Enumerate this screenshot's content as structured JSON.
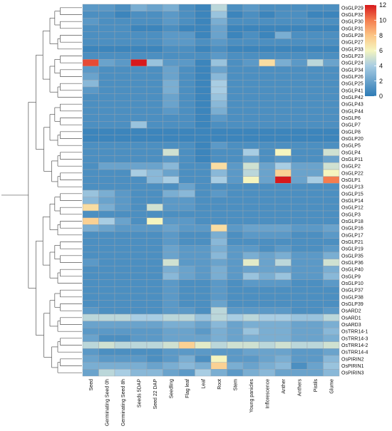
{
  "chart_data": {
    "type": "heatmap",
    "title": "",
    "columns": [
      "Seed",
      "Germinating Seed 0h",
      "Germinating Seed 8h",
      "Seeds 5DAP",
      "Seed 22 DAP",
      "Seedling",
      "Flag leaf",
      "Leaf",
      "Root",
      "Stem",
      "Young panicles",
      "Inflorescence",
      "Anther",
      "Anthers",
      "Pistils",
      "Glume"
    ],
    "rows": [
      "OsGLP29",
      "OsGLP32",
      "OsGLP30",
      "OsGLP31",
      "OsGLP28",
      "OsGLP27",
      "OsGLP33",
      "OsGLP23",
      "OsGLP24",
      "OsGLP34",
      "OsGLP26",
      "OsGLP25",
      "OsGLP41",
      "OsGLP42",
      "OsGLP43",
      "OsGLP44",
      "OsGLP6",
      "OsGLP7",
      "OsGLP8",
      "OsGLP20",
      "OsGLP5",
      "OsGLP4",
      "OsGLP11",
      "OsGLP2",
      "OsGLP22",
      "OsGLP1",
      "OsGLP13",
      "OsGLP15",
      "OsGLP14",
      "OsGLP12",
      "OsGLP3",
      "OsGLP18",
      "OsGLP16",
      "OsGLP17",
      "OsGLP21",
      "OsGLP19",
      "OsGLP35",
      "OsGLP36",
      "OsGLP40",
      "OsGLP9",
      "OsGLP10",
      "OsGLP37",
      "OsGLP38",
      "OsGLP39",
      "OsARD2",
      "OsARD1",
      "OsARD3",
      "OsTRR14-1",
      "OsTRR14-3",
      "OsTRR14-2",
      "OsTRR14-4",
      "OsPIRIN2",
      "OsPIRIN1",
      "OsPIRIN3"
    ],
    "values": [
      [
        1.5,
        1.5,
        1.0,
        2.5,
        2.0,
        2.5,
        1.0,
        0.5,
        4.5,
        1.0,
        1.5,
        1.0,
        1.0,
        1.0,
        1.0,
        1.0
      ],
      [
        1.0,
        1.0,
        0.5,
        1.0,
        1.0,
        1.5,
        1.0,
        0.5,
        3.5,
        0.5,
        1.0,
        0.5,
        1.0,
        1.0,
        0.5,
        0.5
      ],
      [
        1.5,
        1.0,
        1.0,
        1.0,
        1.0,
        1.5,
        1.0,
        0.5,
        2.5,
        1.0,
        1.0,
        1.0,
        1.0,
        1.0,
        1.0,
        1.0
      ],
      [
        1.0,
        1.0,
        1.0,
        0.5,
        0.5,
        1.0,
        0.5,
        0.5,
        2.0,
        0.5,
        0.5,
        0.5,
        0.5,
        0.5,
        0.5,
        0.5
      ],
      [
        1.0,
        1.0,
        1.0,
        1.0,
        1.0,
        1.5,
        1.5,
        0.5,
        2.0,
        0.5,
        1.0,
        0.5,
        2.5,
        1.0,
        1.0,
        1.0
      ],
      [
        1.0,
        1.0,
        1.0,
        1.0,
        1.0,
        1.5,
        1.5,
        1.0,
        1.5,
        1.0,
        1.0,
        1.0,
        1.0,
        1.0,
        1.0,
        1.0
      ],
      [
        0.5,
        0.5,
        0.5,
        0.5,
        0.5,
        1.0,
        1.0,
        0.5,
        1.0,
        0.5,
        0.5,
        0.5,
        0.5,
        0.5,
        0.5,
        0.5
      ],
      [
        1.0,
        1.0,
        1.0,
        1.0,
        1.0,
        1.0,
        1.0,
        1.0,
        1.5,
        1.0,
        1.0,
        1.0,
        1.0,
        1.0,
        1.0,
        1.0
      ],
      [
        11.0,
        2.0,
        1.5,
        12.0,
        3.5,
        1.5,
        1.5,
        0.5,
        3.5,
        1.0,
        1.5,
        7.0,
        2.5,
        1.5,
        4.5,
        2.0
      ],
      [
        1.5,
        1.0,
        1.0,
        1.0,
        1.0,
        2.0,
        1.0,
        0.5,
        2.0,
        1.0,
        1.0,
        1.0,
        1.0,
        1.0,
        1.0,
        1.0
      ],
      [
        2.0,
        1.0,
        1.0,
        1.0,
        1.0,
        2.0,
        1.0,
        0.5,
        3.0,
        1.0,
        1.0,
        1.0,
        1.0,
        1.0,
        1.0,
        1.0
      ],
      [
        3.0,
        1.0,
        1.0,
        1.0,
        1.0,
        2.5,
        1.0,
        0.5,
        4.0,
        1.0,
        1.0,
        1.0,
        1.0,
        1.0,
        1.0,
        1.0
      ],
      [
        1.5,
        1.0,
        1.0,
        1.0,
        1.0,
        2.5,
        1.0,
        0.5,
        4.0,
        1.0,
        1.0,
        1.0,
        1.0,
        1.0,
        1.0,
        1.0
      ],
      [
        1.0,
        1.0,
        1.0,
        1.0,
        1.0,
        2.0,
        1.0,
        0.5,
        3.5,
        1.0,
        1.0,
        1.0,
        1.0,
        1.0,
        1.0,
        1.0
      ],
      [
        1.0,
        1.0,
        1.0,
        1.0,
        1.0,
        2.0,
        1.0,
        0.5,
        3.0,
        1.0,
        1.0,
        1.0,
        1.0,
        1.0,
        1.0,
        1.0
      ],
      [
        1.0,
        1.0,
        1.0,
        1.0,
        1.0,
        1.5,
        1.0,
        0.5,
        2.5,
        1.0,
        1.0,
        1.0,
        1.0,
        1.0,
        1.0,
        1.0
      ],
      [
        1.0,
        1.0,
        1.0,
        1.0,
        1.0,
        1.0,
        1.0,
        0.5,
        1.5,
        1.0,
        1.0,
        1.0,
        1.0,
        1.0,
        1.0,
        1.0
      ],
      [
        1.0,
        1.0,
        1.0,
        3.5,
        1.0,
        1.0,
        1.0,
        0.5,
        1.0,
        1.0,
        1.0,
        1.0,
        1.0,
        1.0,
        1.0,
        1.0
      ],
      [
        0.5,
        0.5,
        0.5,
        0.5,
        0.5,
        0.5,
        0.5,
        0.5,
        0.5,
        0.5,
        0.5,
        0.5,
        0.5,
        0.5,
        0.5,
        0.5
      ],
      [
        0.5,
        0.5,
        0.5,
        0.5,
        0.5,
        0.5,
        0.5,
        0.5,
        0.5,
        0.5,
        0.5,
        0.5,
        0.5,
        0.5,
        0.5,
        0.5
      ],
      [
        1.0,
        1.0,
        1.0,
        1.0,
        1.0,
        1.0,
        1.0,
        0.5,
        1.5,
        1.0,
        1.0,
        1.0,
        1.0,
        1.0,
        1.0,
        1.0
      ],
      [
        1.0,
        1.0,
        1.0,
        1.0,
        1.0,
        5.0,
        1.0,
        0.5,
        1.0,
        1.0,
        4.0,
        1.0,
        6.0,
        1.0,
        1.0,
        5.0
      ],
      [
        1.0,
        1.0,
        1.0,
        1.0,
        1.0,
        1.5,
        1.0,
        0.5,
        1.0,
        1.0,
        2.0,
        1.0,
        1.5,
        1.0,
        1.0,
        2.0
      ],
      [
        1.0,
        2.0,
        2.0,
        2.0,
        2.0,
        3.0,
        1.0,
        1.0,
        7.0,
        1.5,
        5.0,
        2.0,
        4.0,
        2.0,
        2.0,
        5.0
      ],
      [
        1.0,
        1.0,
        1.0,
        4.0,
        3.0,
        2.0,
        1.0,
        1.0,
        3.0,
        1.5,
        4.5,
        2.0,
        7.5,
        2.0,
        2.0,
        6.0
      ],
      [
        1.0,
        1.0,
        1.0,
        1.0,
        3.0,
        4.0,
        1.0,
        1.0,
        4.0,
        1.5,
        6.0,
        2.0,
        12.0,
        2.0,
        4.0,
        10.0
      ],
      [
        1.0,
        1.0,
        1.0,
        1.0,
        1.0,
        1.0,
        2.0,
        1.0,
        1.0,
        1.0,
        1.0,
        1.0,
        1.0,
        1.0,
        1.0,
        1.0
      ],
      [
        3.5,
        2.5,
        1.5,
        1.0,
        1.0,
        2.5,
        3.0,
        1.0,
        1.5,
        1.0,
        1.0,
        1.0,
        1.0,
        1.0,
        1.0,
        1.0
      ],
      [
        3.0,
        2.0,
        1.5,
        1.0,
        1.0,
        1.5,
        1.5,
        1.0,
        1.0,
        1.0,
        1.0,
        1.0,
        1.0,
        1.0,
        1.0,
        1.0
      ],
      [
        7.0,
        2.5,
        1.5,
        1.0,
        5.0,
        1.5,
        1.5,
        1.0,
        1.0,
        1.0,
        1.0,
        1.0,
        1.0,
        1.0,
        1.0,
        1.0
      ],
      [
        1.0,
        1.0,
        1.0,
        1.0,
        1.0,
        1.0,
        1.0,
        1.0,
        1.0,
        1.0,
        1.0,
        1.0,
        1.0,
        1.0,
        1.0,
        1.0
      ],
      [
        7.5,
        4.0,
        2.0,
        1.0,
        6.0,
        1.5,
        1.5,
        1.0,
        1.0,
        1.0,
        1.0,
        1.0,
        1.0,
        1.0,
        1.0,
        1.0
      ],
      [
        2.5,
        2.0,
        1.5,
        1.5,
        1.5,
        2.0,
        1.5,
        1.5,
        7.0,
        1.5,
        2.0,
        2.0,
        2.0,
        1.5,
        1.5,
        2.0
      ],
      [
        1.0,
        1.0,
        1.0,
        1.0,
        1.0,
        1.5,
        1.0,
        1.0,
        2.5,
        1.0,
        1.5,
        1.5,
        1.5,
        1.0,
        1.0,
        1.5
      ],
      [
        1.0,
        1.0,
        1.0,
        1.0,
        1.0,
        1.5,
        1.0,
        1.0,
        3.0,
        1.0,
        1.0,
        1.0,
        1.0,
        1.0,
        1.0,
        1.0
      ],
      [
        1.0,
        1.0,
        1.0,
        1.0,
        1.0,
        2.0,
        1.5,
        1.5,
        2.5,
        1.5,
        1.5,
        1.0,
        1.5,
        1.0,
        1.0,
        1.5
      ],
      [
        1.0,
        1.0,
        1.0,
        1.0,
        1.0,
        2.0,
        1.5,
        1.5,
        3.0,
        1.5,
        2.5,
        2.0,
        2.5,
        1.5,
        1.5,
        2.5
      ],
      [
        1.5,
        1.0,
        1.0,
        1.0,
        1.0,
        5.0,
        1.5,
        1.5,
        2.0,
        1.5,
        5.5,
        2.0,
        4.5,
        1.5,
        1.5,
        5.0
      ],
      [
        1.0,
        1.0,
        1.0,
        1.0,
        1.0,
        2.5,
        2.0,
        1.5,
        2.5,
        1.5,
        2.0,
        2.0,
        2.0,
        1.5,
        1.5,
        2.5
      ],
      [
        1.0,
        1.0,
        1.0,
        1.0,
        1.0,
        3.0,
        2.0,
        1.5,
        2.5,
        1.5,
        3.5,
        2.5,
        3.5,
        1.5,
        1.5,
        3.0
      ],
      [
        1.0,
        1.0,
        1.0,
        1.0,
        1.0,
        1.5,
        1.0,
        1.0,
        1.5,
        1.0,
        1.5,
        1.5,
        1.5,
        1.0,
        1.0,
        1.5
      ],
      [
        1.0,
        1.0,
        1.0,
        1.0,
        1.0,
        1.5,
        1.0,
        1.0,
        1.5,
        1.0,
        1.0,
        1.0,
        1.0,
        1.0,
        1.0,
        1.0
      ],
      [
        1.0,
        1.0,
        1.0,
        1.0,
        1.0,
        1.5,
        1.0,
        1.0,
        1.5,
        1.0,
        1.0,
        1.0,
        1.0,
        1.0,
        1.0,
        1.0
      ],
      [
        1.0,
        1.0,
        1.0,
        1.0,
        1.0,
        1.5,
        1.0,
        1.0,
        2.0,
        1.0,
        1.0,
        1.0,
        1.0,
        1.0,
        1.0,
        1.0
      ],
      [
        1.5,
        1.0,
        1.0,
        1.0,
        1.0,
        1.5,
        1.5,
        1.0,
        4.5,
        1.5,
        1.5,
        1.5,
        1.5,
        1.0,
        1.0,
        1.5
      ],
      [
        4.5,
        4.5,
        4.5,
        4.0,
        4.0,
        4.5,
        4.5,
        3.5,
        4.5,
        4.0,
        4.5,
        4.0,
        4.0,
        3.5,
        3.5,
        4.5
      ],
      [
        2.0,
        2.0,
        2.0,
        2.0,
        2.0,
        2.5,
        2.5,
        2.0,
        3.0,
        2.0,
        2.5,
        2.5,
        2.5,
        2.0,
        2.0,
        2.5
      ],
      [
        1.5,
        1.5,
        1.5,
        1.5,
        1.5,
        2.0,
        2.0,
        1.5,
        2.5,
        2.0,
        3.5,
        2.5,
        2.5,
        2.0,
        2.0,
        3.0
      ],
      [
        2.0,
        1.0,
        1.0,
        1.5,
        1.5,
        2.0,
        2.0,
        2.0,
        2.5,
        2.0,
        2.5,
        2.5,
        2.5,
        2.0,
        2.0,
        2.5
      ],
      [
        4.5,
        5.0,
        4.5,
        4.5,
        4.5,
        5.0,
        7.5,
        5.5,
        4.5,
        5.0,
        5.0,
        4.5,
        5.0,
        4.5,
        4.5,
        5.0
      ],
      [
        1.5,
        1.0,
        1.0,
        1.0,
        1.0,
        1.5,
        1.5,
        1.5,
        1.5,
        1.5,
        2.0,
        2.0,
        2.0,
        1.5,
        1.5,
        2.0
      ],
      [
        2.0,
        1.5,
        1.5,
        1.5,
        1.0,
        1.5,
        2.5,
        1.0,
        6.0,
        1.5,
        1.5,
        2.0,
        2.5,
        1.5,
        1.5,
        3.0
      ],
      [
        2.5,
        2.5,
        2.5,
        2.5,
        2.0,
        2.5,
        3.0,
        2.5,
        7.5,
        2.5,
        2.0,
        2.5,
        3.0,
        1.0,
        2.0,
        3.5
      ],
      [
        2.0,
        4.5,
        4.0,
        3.0,
        3.0,
        2.0,
        1.5,
        4.0,
        2.5,
        1.5,
        2.5,
        3.0,
        2.0,
        2.0,
        2.0,
        3.0
      ]
    ],
    "color_scale": {
      "min": 0,
      "max": 12,
      "ticks": [
        0,
        2,
        4,
        6,
        8,
        10,
        12
      ],
      "stops": [
        "#2d7bb6",
        "#6aa3cc",
        "#a8cde3",
        "#f5f5bf",
        "#fcc585",
        "#f47d4f",
        "#d7191c"
      ]
    },
    "grid": false,
    "legend_position": "top-right"
  }
}
